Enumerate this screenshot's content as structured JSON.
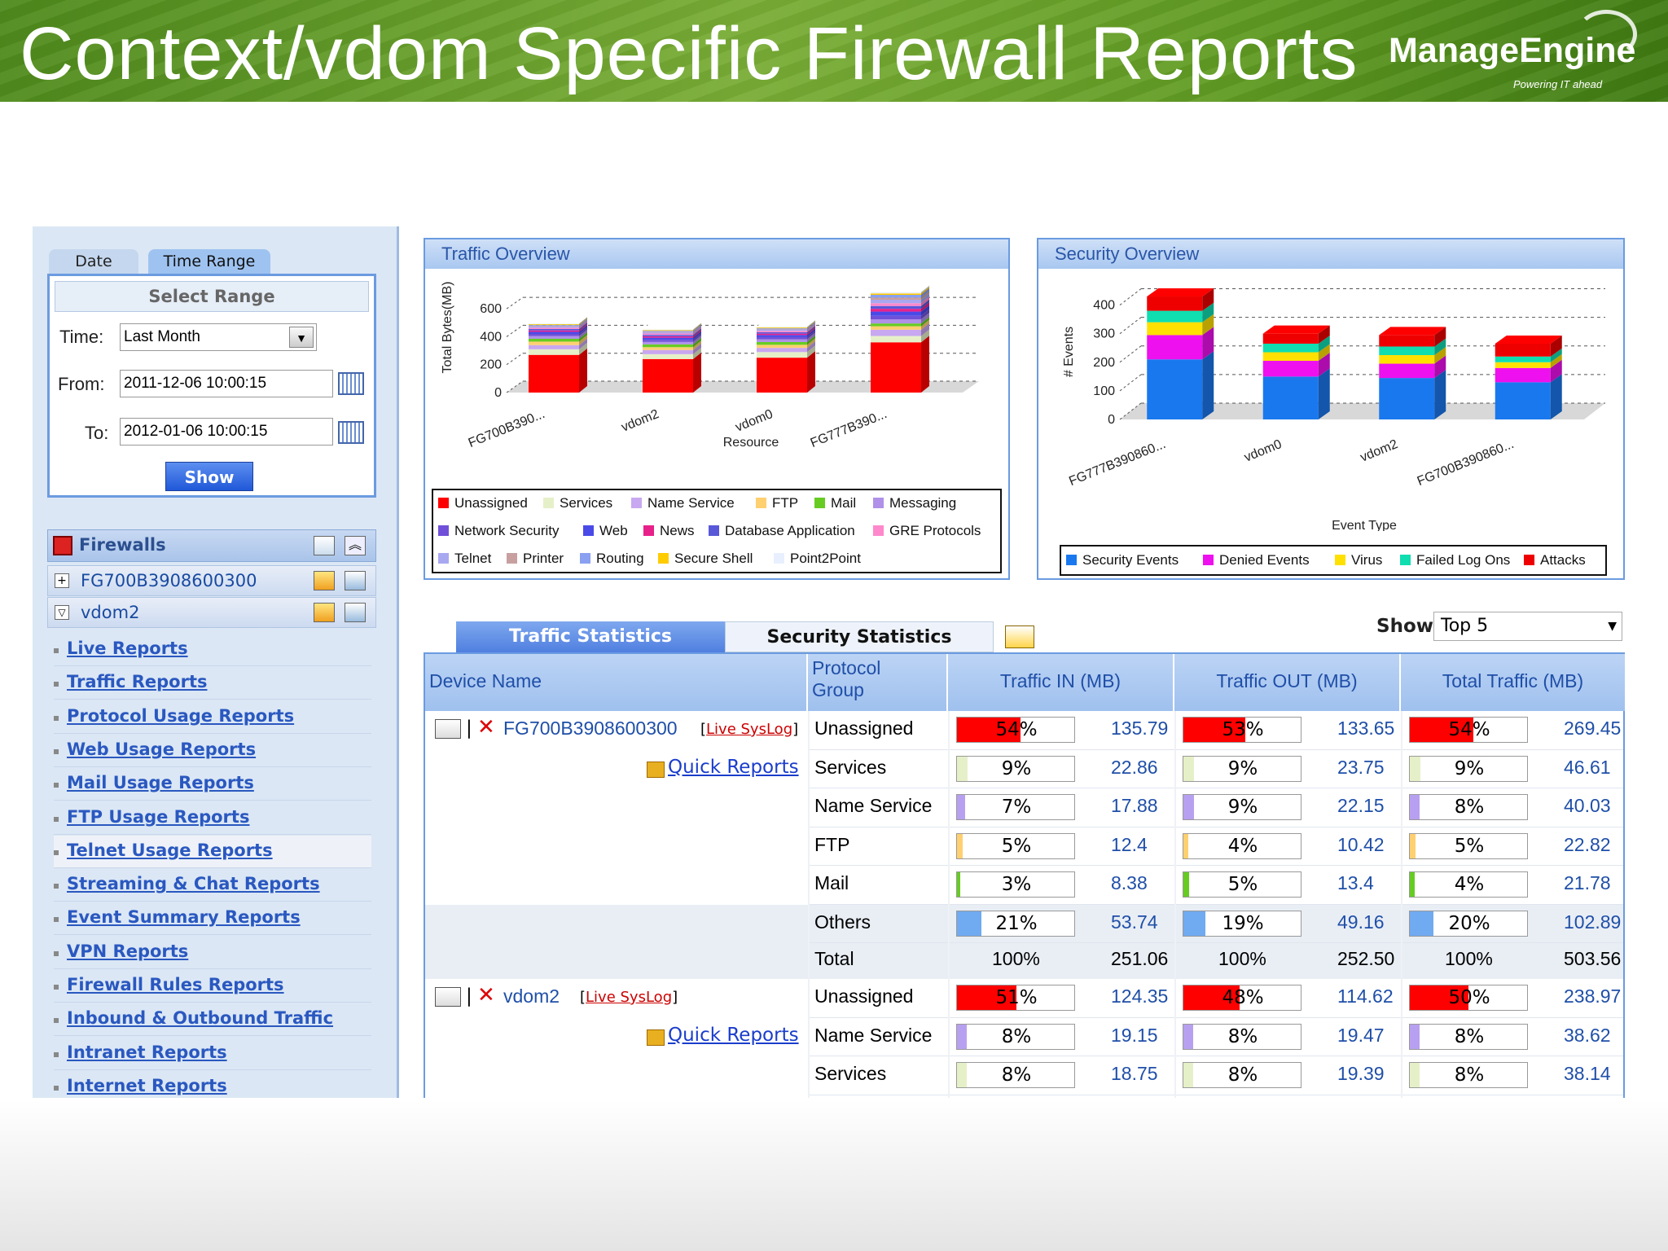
{
  "slide": {
    "title": "Context/vdom Specific Firewall Reports",
    "brand": "ManageEngine",
    "brand_tagline": "Powering IT ahead"
  },
  "colors": {
    "banner_green": "#5f9a22",
    "panel_blue": "#6b9be0",
    "link_blue": "#2a58c0",
    "bar_red": "#ff0000"
  },
  "date_panel": {
    "tabs": [
      "Date",
      "Time Range"
    ],
    "heading": "Select Range",
    "time_label": "Time:",
    "time_value": "Last Month",
    "from_label": "From:",
    "from_value": "2011-12-06 10:00:15",
    "to_label": "To:",
    "to_value": "2012-01-06 10:00:15",
    "show_button": "Show"
  },
  "firewalls": {
    "title": "Firewalls",
    "devices": [
      "FG700B3908600300",
      "vdom2"
    ]
  },
  "nav": {
    "links": [
      "Live Reports",
      "Traffic Reports",
      "Protocol Usage Reports",
      "Web Usage Reports",
      "Mail Usage Reports",
      "FTP Usage Reports",
      "Telnet Usage Reports",
      "Streaming & Chat Reports",
      "Event Summary Reports",
      "VPN Reports",
      "Firewall Rules Reports",
      "Inbound & Outbound Traffic",
      "Intranet Reports",
      "Internet Reports"
    ]
  },
  "chart_data": [
    {
      "type": "bar",
      "title": "Traffic Overview",
      "stacked": true,
      "three_d": true,
      "xlabel": "Resource",
      "ylabel": "Total Bytes(MB)",
      "ylim": [
        0,
        700
      ],
      "yticks": [
        0,
        200,
        400,
        600
      ],
      "categories": [
        "FG700B390...",
        "vdom2",
        "vdom0",
        "FG777B390..."
      ],
      "series": [
        {
          "name": "Unassigned",
          "color": "#ff0000",
          "values": [
            270,
            240,
            250,
            360
          ]
        },
        {
          "name": "Services",
          "color": "#e6f0c8",
          "values": [
            40,
            35,
            40,
            45
          ]
        },
        {
          "name": "Name Service",
          "color": "#c8a8f0",
          "values": [
            30,
            30,
            30,
            45
          ]
        },
        {
          "name": "FTP",
          "color": "#ffd070",
          "values": [
            25,
            20,
            22,
            25
          ]
        },
        {
          "name": "Mail",
          "color": "#66cc22",
          "values": [
            20,
            20,
            20,
            20
          ]
        },
        {
          "name": "Messaging",
          "color": "#b090e8",
          "values": [
            20,
            18,
            20,
            30
          ]
        },
        {
          "name": "Network Security",
          "color": "#7050d8",
          "values": [
            15,
            15,
            15,
            25
          ]
        },
        {
          "name": "Web",
          "color": "#4a4ae8",
          "values": [
            15,
            15,
            15,
            30
          ]
        },
        {
          "name": "News",
          "color": "#e8208a",
          "values": [
            10,
            10,
            10,
            20
          ]
        },
        {
          "name": "Database Application",
          "color": "#5858d8",
          "values": [
            10,
            10,
            10,
            20
          ]
        },
        {
          "name": "GRE Protocols",
          "color": "#ff88cc",
          "values": [
            10,
            10,
            10,
            20
          ]
        },
        {
          "name": "Telnet",
          "color": "#a8a8f0",
          "values": [
            10,
            10,
            10,
            25
          ]
        },
        {
          "name": "Printer",
          "color": "#c8a0a0",
          "values": [
            5,
            5,
            5,
            15
          ]
        },
        {
          "name": "Routing",
          "color": "#8aa0f0",
          "values": [
            5,
            5,
            5,
            20
          ]
        },
        {
          "name": "Secure Shell",
          "color": "#ffcc00",
          "values": [
            5,
            5,
            5,
            10
          ]
        },
        {
          "name": "Point2Point",
          "color": "#e8f0ff",
          "values": [
            5,
            5,
            5,
            10
          ]
        }
      ],
      "legend": [
        "Unassigned",
        "Services",
        "Name Service",
        "FTP",
        "Mail",
        "Messaging",
        "Network Security",
        "Web",
        "News",
        "Database Application",
        "GRE Protocols",
        "Telnet",
        "Printer",
        "Routing",
        "Secure Shell",
        "Point2Point"
      ],
      "legend_position": "bottom"
    },
    {
      "type": "bar",
      "title": "Security Overview",
      "stacked": true,
      "three_d": true,
      "xlabel": "Event Type",
      "ylabel": "# Events",
      "ylim": [
        0,
        450
      ],
      "yticks": [
        0,
        100,
        200,
        300,
        400
      ],
      "categories": [
        "FG777B390860...",
        "vdom0",
        "vdom2",
        "FG700B390860..."
      ],
      "series": [
        {
          "name": "Security Events",
          "color": "#1a78ee",
          "values": [
            210,
            150,
            145,
            130
          ]
        },
        {
          "name": "Denied Events",
          "color": "#ee10ee",
          "values": [
            85,
            55,
            50,
            50
          ]
        },
        {
          "name": "Virus",
          "color": "#ffe000",
          "values": [
            45,
            30,
            30,
            20
          ]
        },
        {
          "name": "Failed Log Ons",
          "color": "#10ddb0",
          "values": [
            40,
            30,
            30,
            20
          ]
        },
        {
          "name": "Attacks",
          "color": "#ee0000",
          "values": [
            50,
            35,
            40,
            45
          ]
        }
      ],
      "legend": [
        "Security Events",
        "Denied Events",
        "Virus",
        "Failed Log Ons",
        "Attacks"
      ],
      "legend_position": "bottom"
    }
  ],
  "stats": {
    "tabs": [
      "Traffic Statistics",
      "Security Statistics"
    ],
    "show_label": "Show",
    "show_value": "Top 5",
    "columns": [
      "Device Name",
      "Protocol Group",
      "Traffic IN (MB)",
      "Traffic OUT (MB)",
      "Total Traffic (MB)"
    ],
    "live_syslog": "Live SysLog",
    "quick_reports": "Quick Reports",
    "devices": [
      {
        "name": "FG700B3908600300",
        "rows": [
          {
            "group": "Unassigned",
            "in_pct": "54%",
            "in_pct_val": 54,
            "in": "135.79",
            "out_pct": "53%",
            "out_pct_val": 53,
            "out": "133.65",
            "tot_pct": "54%",
            "tot_pct_val": 54,
            "tot": "269.45",
            "color": "#ff0000"
          },
          {
            "group": "Services",
            "in_pct": "9%",
            "in_pct_val": 9,
            "in": "22.86",
            "out_pct": "9%",
            "out_pct_val": 9,
            "out": "23.75",
            "tot_pct": "9%",
            "tot_pct_val": 9,
            "tot": "46.61",
            "color": "#e6f0c8"
          },
          {
            "group": "Name Service",
            "in_pct": "7%",
            "in_pct_val": 7,
            "in": "17.88",
            "out_pct": "9%",
            "out_pct_val": 9,
            "out": "22.15",
            "tot_pct": "8%",
            "tot_pct_val": 8,
            "tot": "40.03",
            "color": "#b8a0f0"
          },
          {
            "group": "FTP",
            "in_pct": "5%",
            "in_pct_val": 5,
            "in": "12.4",
            "out_pct": "4%",
            "out_pct_val": 4,
            "out": "10.42",
            "tot_pct": "5%",
            "tot_pct_val": 5,
            "tot": "22.82",
            "color": "#ffd070"
          },
          {
            "group": "Mail",
            "in_pct": "3%",
            "in_pct_val": 3,
            "in": "8.38",
            "out_pct": "5%",
            "out_pct_val": 5,
            "out": "13.4",
            "tot_pct": "4%",
            "tot_pct_val": 4,
            "tot": "21.78",
            "color": "#66cc22"
          },
          {
            "group": "Others",
            "in_pct": "21%",
            "in_pct_val": 21,
            "in": "53.74",
            "out_pct": "19%",
            "out_pct_val": 19,
            "out": "49.16",
            "tot_pct": "20%",
            "tot_pct_val": 20,
            "tot": "102.89",
            "color": "#70aaf0"
          }
        ],
        "total": {
          "label": "Total",
          "in_pct": "100%",
          "in": "251.06",
          "out_pct": "100%",
          "out": "252.50",
          "tot_pct": "100%",
          "tot": "503.56"
        }
      },
      {
        "name": "vdom2",
        "rows": [
          {
            "group": "Unassigned",
            "in_pct": "51%",
            "in_pct_val": 51,
            "in": "124.35",
            "out_pct": "48%",
            "out_pct_val": 48,
            "out": "114.62",
            "tot_pct": "50%",
            "tot_pct_val": 50,
            "tot": "238.97",
            "color": "#ff0000"
          },
          {
            "group": "Name Service",
            "in_pct": "8%",
            "in_pct_val": 8,
            "in": "19.15",
            "out_pct": "8%",
            "out_pct_val": 8,
            "out": "19.47",
            "tot_pct": "8%",
            "tot_pct_val": 8,
            "tot": "38.62",
            "color": "#b8a0f0"
          },
          {
            "group": "Services",
            "in_pct": "8%",
            "in_pct_val": 8,
            "in": "18.75",
            "out_pct": "8%",
            "out_pct_val": 8,
            "out": "19.39",
            "tot_pct": "8%",
            "tot_pct_val": 8,
            "tot": "38.14",
            "color": "#e6f0c8"
          }
        ]
      }
    ]
  }
}
